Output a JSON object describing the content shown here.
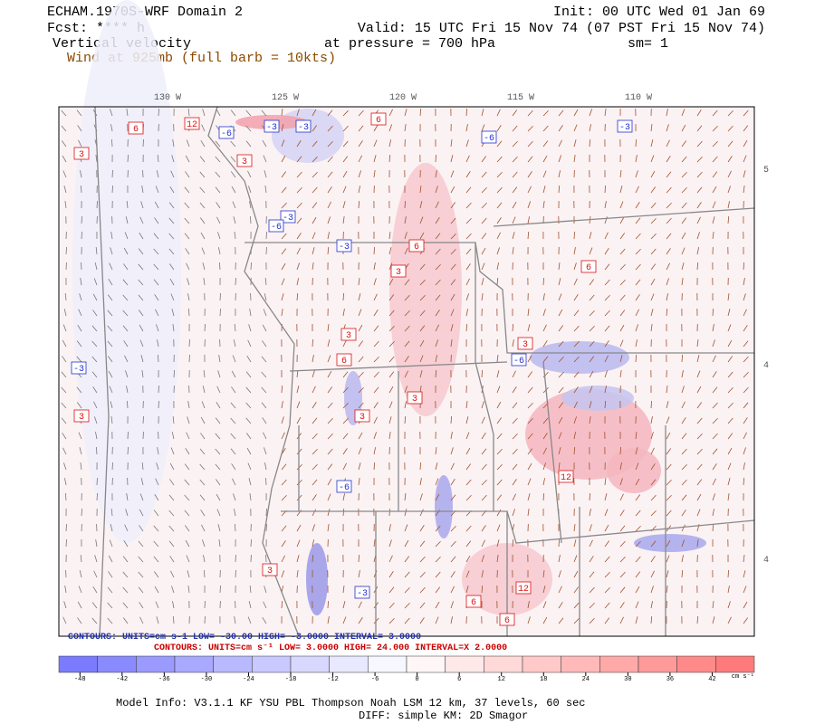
{
  "header": {
    "title": "ECHAM.1970S-WRF Domain 2",
    "init": "Init: 00 UTC Wed 01 Jan 69",
    "fcst": "Fcst: **** h",
    "valid": "Valid: 15 UTC Fri 15 Nov 74 (07 PST Fri 15 Nov 74)",
    "field": "Vertical velocity",
    "level": "at pressure =  700 hPa",
    "smooth": "sm= 1",
    "wind": "Wind at 925mb (full barb = 10kts)"
  },
  "map": {
    "lon_labels": [
      "130 W",
      "125 W",
      "120 W",
      "115 W",
      "110 W"
    ],
    "lat_labels": [
      "5",
      "4",
      "4"
    ],
    "contour_labels": [
      "6",
      "12",
      "-6",
      "-3",
      "-3",
      "6",
      "3",
      "3",
      "-3",
      "-6",
      "6",
      "3",
      "-3",
      "-3",
      "-6",
      "3",
      "6",
      "3",
      "3",
      "-6",
      "3",
      "6",
      "12",
      "-6",
      "3",
      "-3",
      "3",
      "-3",
      "6",
      "12",
      "6"
    ]
  },
  "contours": {
    "blue": "CONTOURS:  UNITS=cm s-1  LOW= -30.00    HIGH= -3.0000    INTERVAL= 3.0000",
    "red": "CONTOURS:  UNITS=cm s⁻¹  LOW=  3.0000     HIGH= 24.000     INTERVAL=X  2.0000"
  },
  "colorbar": {
    "lim": [
      -51,
      48
    ],
    "ticks": [
      -48,
      -42,
      -36,
      -30,
      -24,
      -18,
      -12,
      -6,
      0,
      6,
      12,
      18,
      24,
      30,
      36,
      42
    ],
    "units": "cm s⁻¹"
  },
  "footer": {
    "model": "Model Info: V3.1.1    KF      YSU PBL   Thompson     Noah LSM   12 km,    37 levels,    60 sec",
    "diff": "DIFF: simple KM: 2D Smagor"
  }
}
